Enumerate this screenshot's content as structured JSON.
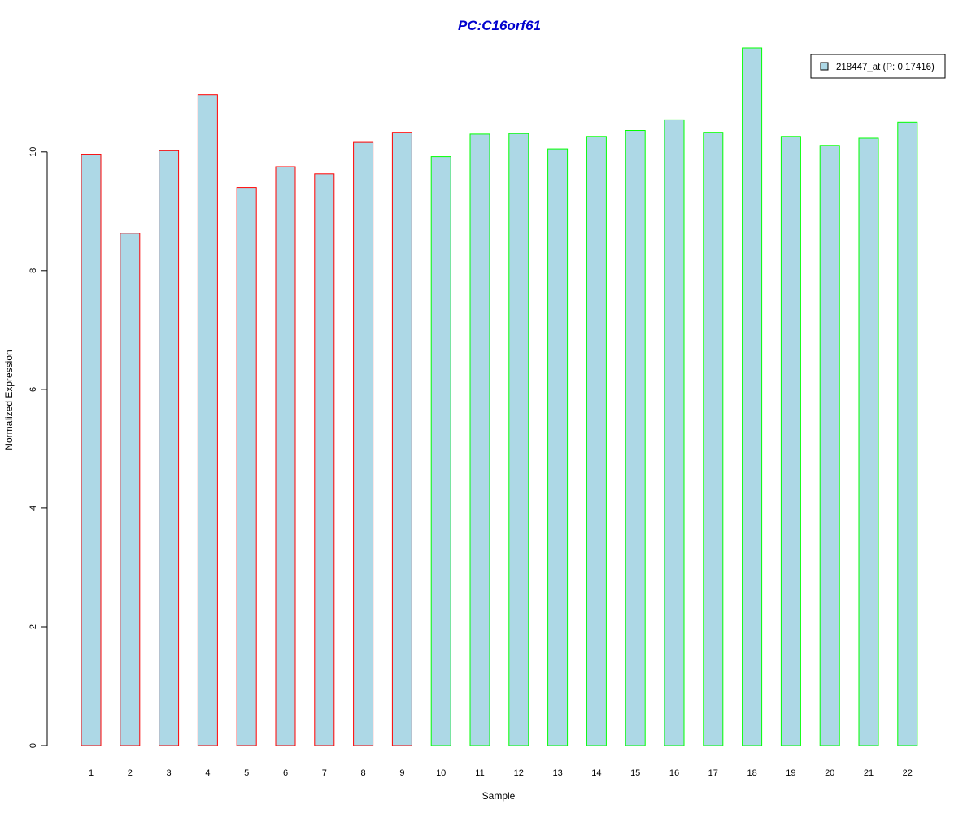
{
  "chart_data": {
    "type": "bar",
    "title": "PC:C16orf61",
    "xlabel": "Sample",
    "ylabel": "Normalized Expression",
    "categories": [
      "1",
      "2",
      "3",
      "4",
      "5",
      "6",
      "7",
      "8",
      "9",
      "10",
      "11",
      "12",
      "13",
      "14",
      "15",
      "16",
      "17",
      "18",
      "19",
      "20",
      "21",
      "22"
    ],
    "values": [
      9.95,
      8.63,
      10.02,
      10.96,
      9.4,
      9.75,
      9.63,
      10.16,
      10.33,
      9.92,
      10.3,
      10.31,
      10.05,
      10.26,
      10.36,
      10.54,
      10.33,
      11.75,
      10.26,
      10.11,
      10.23,
      10.5
    ],
    "groups": [
      "red",
      "red",
      "red",
      "red",
      "red",
      "red",
      "red",
      "red",
      "red",
      "green",
      "green",
      "green",
      "green",
      "green",
      "green",
      "green",
      "green",
      "green",
      "green",
      "green",
      "green",
      "green"
    ],
    "ylim": [
      0,
      11.75
    ],
    "yticks": [
      0,
      2,
      4,
      6,
      8,
      10
    ],
    "grid": false,
    "legend": {
      "position": "top-right",
      "entries": [
        "218447_at (P: 0.17416)"
      ]
    },
    "colors": {
      "fill": "#add8e6",
      "group_red": "#ff0000",
      "group_green": "#00ff00",
      "title": "#0000cd"
    }
  }
}
